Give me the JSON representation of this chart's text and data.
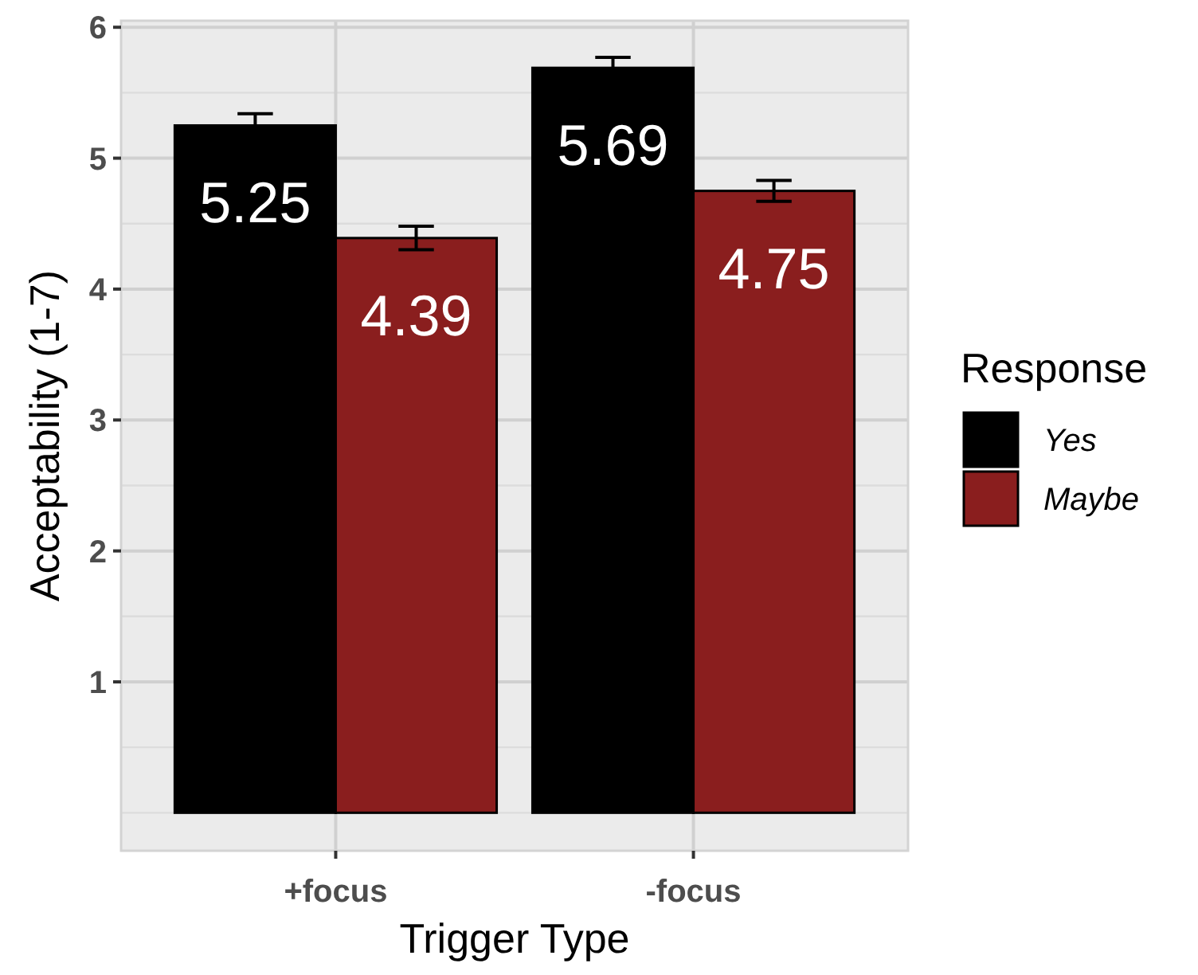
{
  "chart_data": {
    "type": "bar",
    "xlabel": "Trigger Type",
    "ylabel": "Acceptability (1-7)",
    "legend_title": "Response",
    "categories": [
      "+focus",
      "-focus"
    ],
    "series": [
      {
        "name": "Yes",
        "color": "#000000",
        "values": [
          5.25,
          5.69
        ],
        "errors": [
          0.09,
          0.08
        ]
      },
      {
        "name": "Maybe",
        "color": "#8a1e1e",
        "values": [
          4.39,
          4.75
        ],
        "errors": [
          0.09,
          0.08
        ]
      }
    ],
    "ylim": [
      -0.29,
      6.05
    ],
    "yticks": [
      1,
      2,
      3,
      4,
      5,
      6
    ],
    "grid": true,
    "legend": "right",
    "data_labels": true
  }
}
